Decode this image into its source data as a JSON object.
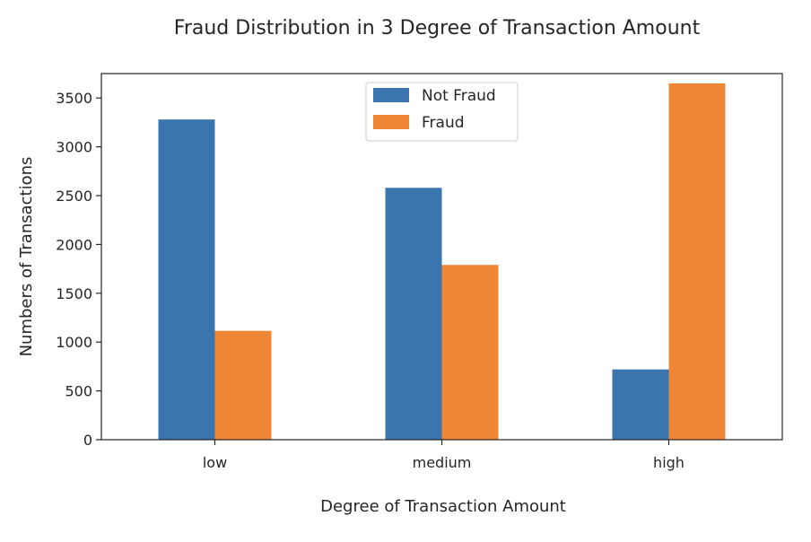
{
  "chart_data": {
    "type": "bar",
    "title": "Fraud Distribution in 3 Degree of Transaction Amount",
    "xlabel": "Degree of Transaction Amount",
    "ylabel": "Numbers of Transactions",
    "categories": [
      "low",
      "medium",
      "high"
    ],
    "series": [
      {
        "name": "Not Fraud",
        "color": "#3a75b0",
        "values": [
          3280,
          2580,
          720
        ]
      },
      {
        "name": "Fraud",
        "color": "#ee8636",
        "values": [
          1115,
          1790,
          3650
        ]
      }
    ],
    "ylim": [
      0,
      3750
    ],
    "yticks": [
      0,
      500,
      1000,
      1500,
      2000,
      2500,
      3000,
      3500
    ],
    "grid": false,
    "legend_position": "top-center"
  }
}
